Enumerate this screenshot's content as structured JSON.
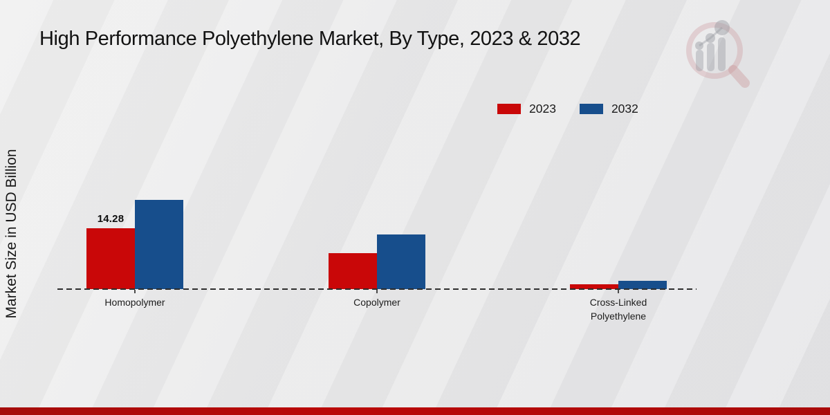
{
  "page": {
    "title": "High Performance Polyethylene Market, By Type, 2023 & 2032",
    "ylabel": "Market Size in USD Billion"
  },
  "legend": {
    "items": [
      {
        "label": "2023",
        "color": "#c90708"
      },
      {
        "label": "2032",
        "color": "#174e8c"
      }
    ]
  },
  "chart_data": {
    "type": "bar",
    "title": "High Performance Polyethylene Market, By Type, 2023 & 2032",
    "xlabel": "",
    "ylabel": "Market Size in USD Billion",
    "categories": [
      "Homopolymer",
      "Copolymer",
      "Cross-Linked Polyethylene"
    ],
    "series": [
      {
        "name": "2023",
        "color": "#c90708",
        "values": [
          14.28,
          8.5,
          1.2
        ],
        "data_labels": [
          "14.28",
          null,
          null
        ]
      },
      {
        "name": "2032",
        "color": "#174e8c",
        "values": [
          21.0,
          12.9,
          2.0
        ],
        "data_labels": [
          null,
          null,
          null
        ]
      }
    ],
    "ylim": [
      0,
      26
    ],
    "grid": false,
    "legend_position": "top-right",
    "baseline_style": "dashed",
    "accent_band_color": "#b30a08",
    "background_color": "#e9e9ea"
  }
}
